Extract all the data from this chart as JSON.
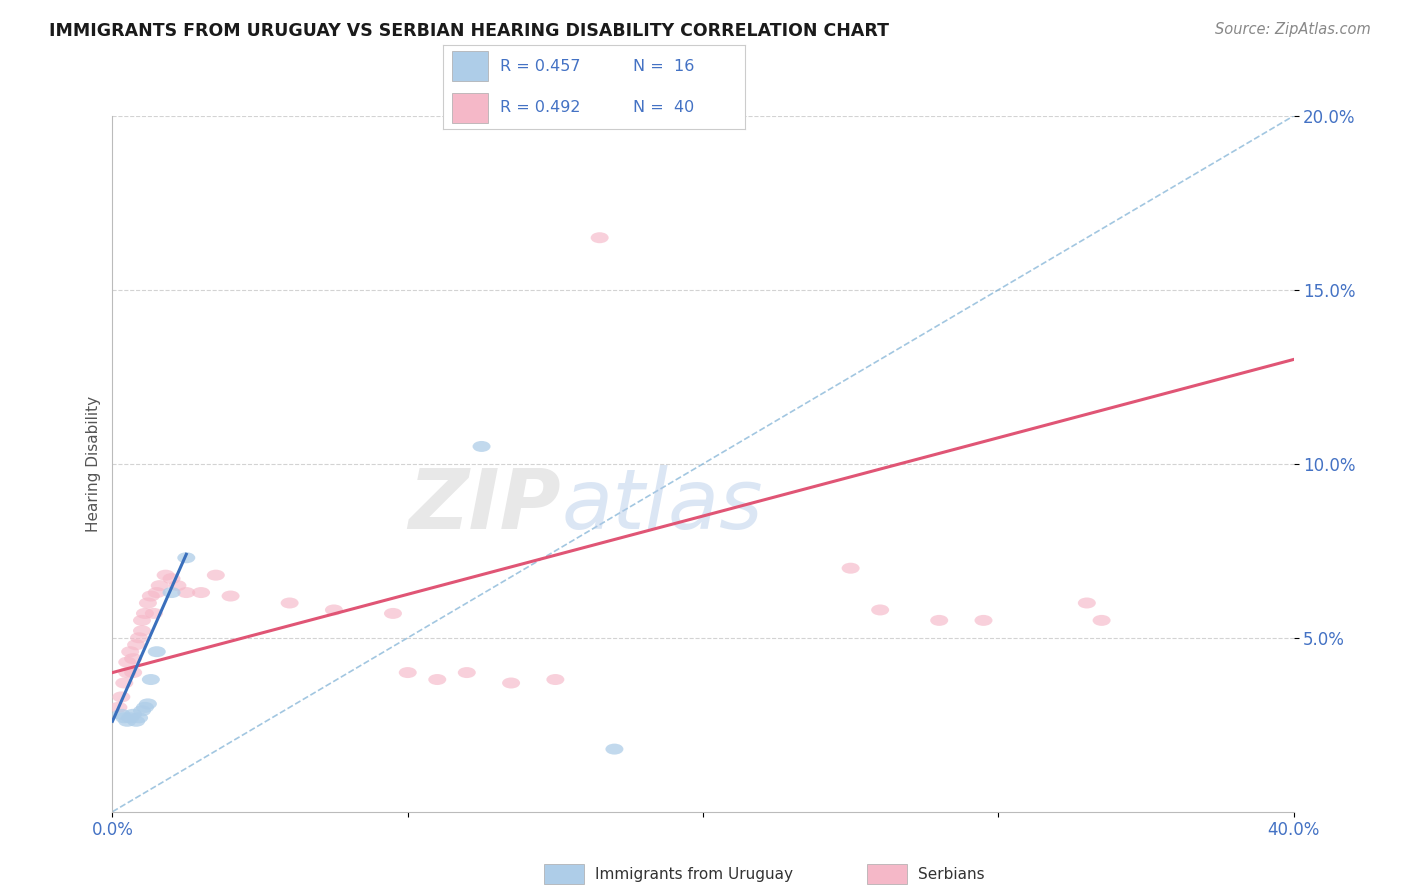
{
  "title": "IMMIGRANTS FROM URUGUAY VS SERBIAN HEARING DISABILITY CORRELATION CHART",
  "source": "Source: ZipAtlas.com",
  "ylabel": "Hearing Disability",
  "xmin": 0.0,
  "xmax": 0.4,
  "ymin": 0.0,
  "ymax": 0.2,
  "yticks": [
    0.05,
    0.1,
    0.15,
    0.2
  ],
  "ytick_labels": [
    "5.0%",
    "10.0%",
    "15.0%",
    "20.0%"
  ],
  "legend_r1": "R = 0.457",
  "legend_n1": "N =  16",
  "legend_r2": "R = 0.492",
  "legend_n2": "N =  40",
  "blue_color": "#aecde8",
  "pink_color": "#f5b8c8",
  "blue_line_color": "#3a6fbc",
  "pink_line_color": "#e05575",
  "diag_line_color": "#7bafd4",
  "blue_scatter": [
    [
      0.003,
      0.028
    ],
    [
      0.004,
      0.027
    ],
    [
      0.005,
      0.026
    ],
    [
      0.006,
      0.027
    ],
    [
      0.007,
      0.028
    ],
    [
      0.008,
      0.026
    ],
    [
      0.009,
      0.027
    ],
    [
      0.01,
      0.029
    ],
    [
      0.011,
      0.03
    ],
    [
      0.012,
      0.031
    ],
    [
      0.013,
      0.038
    ],
    [
      0.015,
      0.046
    ],
    [
      0.02,
      0.063
    ],
    [
      0.025,
      0.073
    ],
    [
      0.125,
      0.105
    ],
    [
      0.17,
      0.018
    ]
  ],
  "pink_scatter": [
    [
      0.002,
      0.03
    ],
    [
      0.003,
      0.033
    ],
    [
      0.004,
      0.037
    ],
    [
      0.005,
      0.04
    ],
    [
      0.005,
      0.043
    ],
    [
      0.006,
      0.046
    ],
    [
      0.007,
      0.04
    ],
    [
      0.007,
      0.044
    ],
    [
      0.008,
      0.048
    ],
    [
      0.009,
      0.05
    ],
    [
      0.01,
      0.052
    ],
    [
      0.01,
      0.055
    ],
    [
      0.011,
      0.057
    ],
    [
      0.012,
      0.06
    ],
    [
      0.013,
      0.062
    ],
    [
      0.014,
      0.057
    ],
    [
      0.015,
      0.063
    ],
    [
      0.016,
      0.065
    ],
    [
      0.018,
      0.068
    ],
    [
      0.02,
      0.067
    ],
    [
      0.022,
      0.065
    ],
    [
      0.025,
      0.063
    ],
    [
      0.03,
      0.063
    ],
    [
      0.035,
      0.068
    ],
    [
      0.04,
      0.062
    ],
    [
      0.06,
      0.06
    ],
    [
      0.075,
      0.058
    ],
    [
      0.095,
      0.057
    ],
    [
      0.1,
      0.04
    ],
    [
      0.11,
      0.038
    ],
    [
      0.12,
      0.04
    ],
    [
      0.135,
      0.037
    ],
    [
      0.15,
      0.038
    ],
    [
      0.165,
      0.165
    ],
    [
      0.25,
      0.07
    ],
    [
      0.26,
      0.058
    ],
    [
      0.28,
      0.055
    ],
    [
      0.295,
      0.055
    ],
    [
      0.33,
      0.06
    ],
    [
      0.335,
      0.055
    ]
  ],
  "blue_line_pts": [
    [
      0.0,
      0.026
    ],
    [
      0.025,
      0.074
    ]
  ],
  "pink_line_pts": [
    [
      0.0,
      0.04
    ],
    [
      0.4,
      0.13
    ]
  ],
  "diag_line_pts": [
    [
      0.0,
      0.0
    ],
    [
      0.4,
      0.2
    ]
  ],
  "watermark_zip": "ZIP",
  "watermark_atlas": "atlas",
  "bg_color": "#ffffff",
  "grid_color": "#d3d3d3",
  "title_color": "#1a1a1a",
  "axis_label_color": "#4472c4",
  "ylabel_color": "#555555",
  "source_color": "#888888",
  "legend_text_color": "#4472c4"
}
